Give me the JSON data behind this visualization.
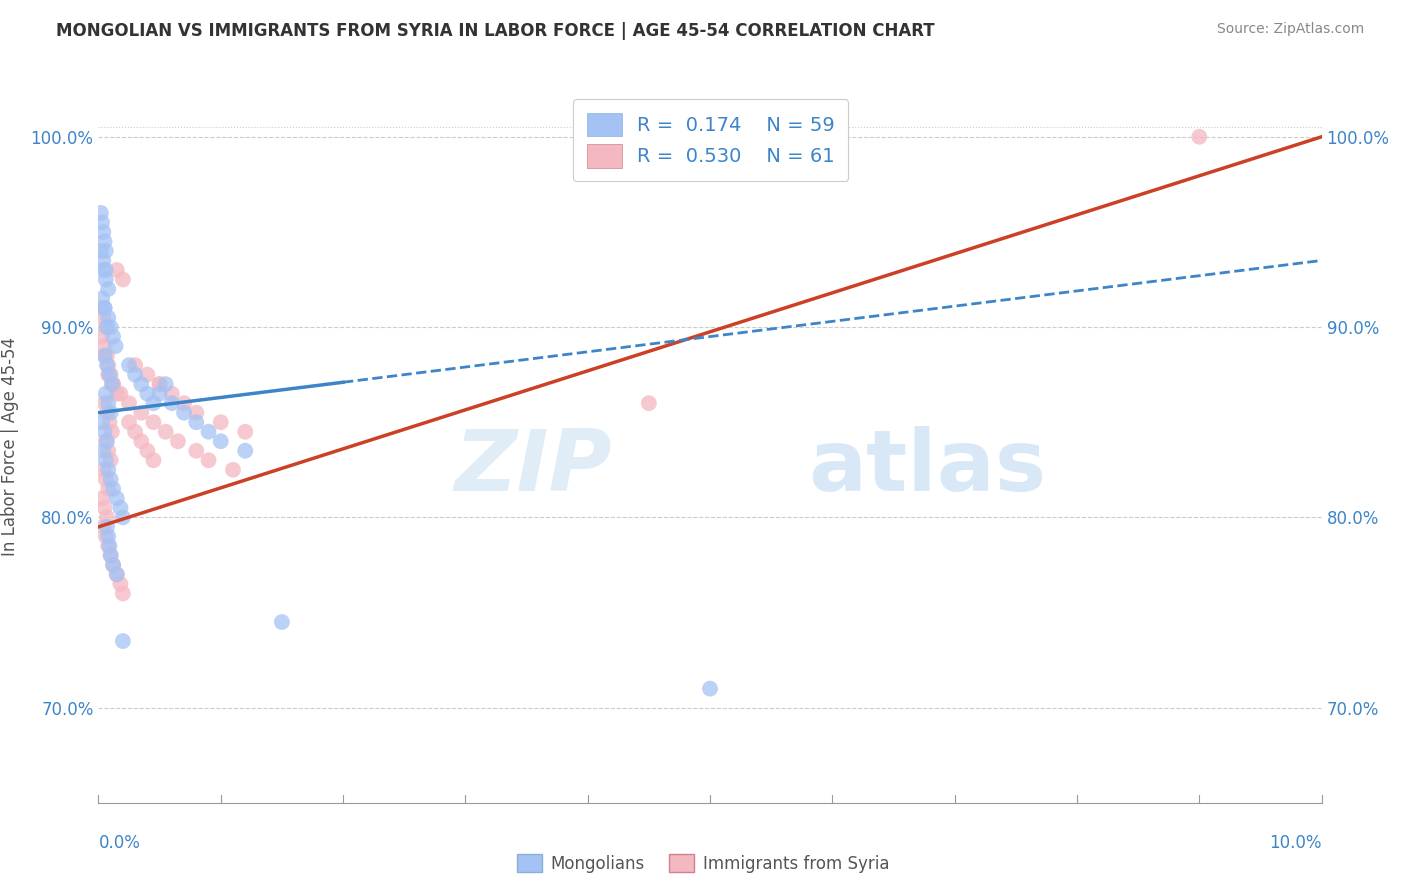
{
  "title": "MONGOLIAN VS IMMIGRANTS FROM SYRIA IN LABOR FORCE | AGE 45-54 CORRELATION CHART",
  "source": "Source: ZipAtlas.com",
  "legend_label1": "Mongolians",
  "legend_label2": "Immigrants from Syria",
  "R1": 0.174,
  "N1": 59,
  "R2": 0.53,
  "N2": 61,
  "color_blue": "#a4c2f4",
  "color_pink": "#f4b8c1",
  "color_blue_line": "#3d85c8",
  "color_pink_line": "#cc4125",
  "watermark_zip": "ZIP",
  "watermark_atlas": "atlas",
  "ylabel": "In Labor Force | Age 45-54",
  "xmin": 0.0,
  "xmax": 10.0,
  "ymin": 65.0,
  "ymax": 102.5,
  "yticks": [
    70.0,
    80.0,
    90.0,
    100.0
  ],
  "ytick_labels": [
    "70.0%",
    "80.0%",
    "90.0%",
    "100.0%"
  ],
  "blue_trend_x0": 0.0,
  "blue_trend_y0": 85.5,
  "blue_trend_x1": 10.0,
  "blue_trend_y1": 93.5,
  "blue_solid_end": 2.0,
  "pink_trend_x0": 0.0,
  "pink_trend_y0": 79.5,
  "pink_trend_x1": 10.0,
  "pink_trend_y1": 100.0,
  "blue_x": [
    0.05,
    0.08,
    0.1,
    0.12,
    0.14,
    0.05,
    0.07,
    0.09,
    0.11,
    0.06,
    0.08,
    0.1,
    0.04,
    0.06,
    0.08,
    0.03,
    0.05,
    0.07,
    0.02,
    0.04,
    0.06,
    0.03,
    0.05,
    0.07,
    0.04,
    0.06,
    0.08,
    0.1,
    0.12,
    0.15,
    0.18,
    0.2,
    0.25,
    0.3,
    0.35,
    0.4,
    0.45,
    0.5,
    0.55,
    0.6,
    0.7,
    0.8,
    0.9,
    1.0,
    1.2,
    1.5,
    0.02,
    0.03,
    0.04,
    0.05,
    0.06,
    0.07,
    0.08,
    0.09,
    0.1,
    0.12,
    0.15,
    0.2,
    5.0
  ],
  "blue_y": [
    91.0,
    90.5,
    90.0,
    89.5,
    89.0,
    88.5,
    88.0,
    87.5,
    87.0,
    86.5,
    86.0,
    85.5,
    93.0,
    92.5,
    92.0,
    91.5,
    91.0,
    90.0,
    94.0,
    93.5,
    93.0,
    85.0,
    84.5,
    84.0,
    83.5,
    83.0,
    82.5,
    82.0,
    81.5,
    81.0,
    80.5,
    80.0,
    88.0,
    87.5,
    87.0,
    86.5,
    86.0,
    86.5,
    87.0,
    86.0,
    85.5,
    85.0,
    84.5,
    84.0,
    83.5,
    74.5,
    96.0,
    95.5,
    95.0,
    94.5,
    94.0,
    79.5,
    79.0,
    78.5,
    78.0,
    77.5,
    77.0,
    73.5,
    71.0
  ],
  "pink_x": [
    0.05,
    0.08,
    0.1,
    0.12,
    0.15,
    0.05,
    0.07,
    0.09,
    0.11,
    0.06,
    0.08,
    0.1,
    0.04,
    0.06,
    0.08,
    0.03,
    0.05,
    0.07,
    0.02,
    0.04,
    0.06,
    0.03,
    0.05,
    0.07,
    0.04,
    0.06,
    0.08,
    0.1,
    0.12,
    0.15,
    0.18,
    0.2,
    0.25,
    0.3,
    0.35,
    0.4,
    0.45,
    0.5,
    0.6,
    0.7,
    0.8,
    1.0,
    1.2,
    0.08,
    0.12,
    0.18,
    0.25,
    0.35,
    0.45,
    0.55,
    0.65,
    0.8,
    0.9,
    1.1,
    0.3,
    0.4,
    0.5,
    4.5,
    0.15,
    0.2,
    9.0
  ],
  "pink_y": [
    88.5,
    88.0,
    87.5,
    87.0,
    86.5,
    86.0,
    85.5,
    85.0,
    84.5,
    84.0,
    83.5,
    83.0,
    82.5,
    82.0,
    81.5,
    81.0,
    80.5,
    80.0,
    91.0,
    90.5,
    90.0,
    89.5,
    89.0,
    88.5,
    79.5,
    79.0,
    78.5,
    78.0,
    77.5,
    77.0,
    76.5,
    76.0,
    85.0,
    84.5,
    84.0,
    83.5,
    83.0,
    87.0,
    86.5,
    86.0,
    85.5,
    85.0,
    84.5,
    87.5,
    87.0,
    86.5,
    86.0,
    85.5,
    85.0,
    84.5,
    84.0,
    83.5,
    83.0,
    82.5,
    88.0,
    87.5,
    87.0,
    86.0,
    93.0,
    92.5,
    100.0
  ]
}
